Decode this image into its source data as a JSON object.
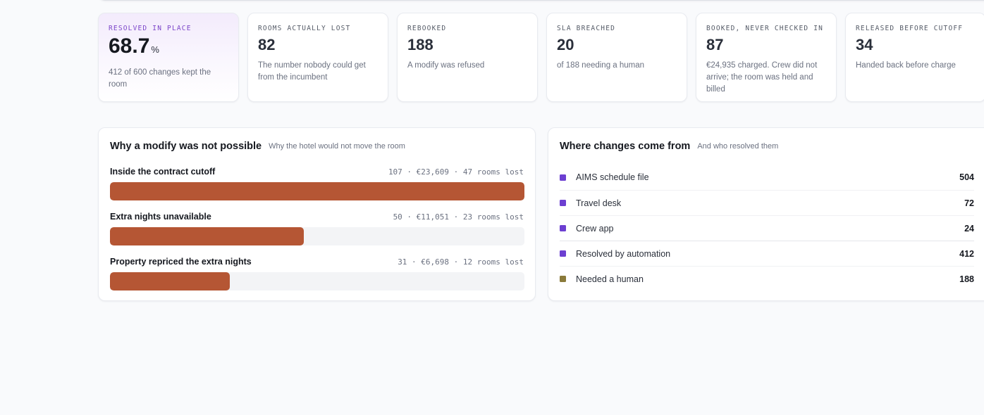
{
  "kpis": [
    {
      "label": "RESOLVED IN PLACE",
      "value": "68.7",
      "unit": "%",
      "desc": "412 of 600 changes kept the room"
    },
    {
      "label": "ROOMS ACTUALLY LOST",
      "value": "82",
      "unit": "",
      "desc": "The number nobody could get from the incumbent"
    },
    {
      "label": "REBOOKED",
      "value": "188",
      "unit": "",
      "desc": "A modify was refused"
    },
    {
      "label": "SLA BREACHED",
      "value": "20",
      "unit": "",
      "desc": "of 188 needing a human"
    },
    {
      "label": "BOOKED, NEVER CHECKED IN",
      "value": "87",
      "unit": "",
      "desc": "€24,935 charged. Crew did not arrive; the room was held and billed"
    },
    {
      "label": "RELEASED BEFORE CUTOFF",
      "value": "34",
      "unit": "",
      "desc": "Handed back before charge"
    }
  ],
  "reasons": {
    "title": "Why a modify was not possible",
    "subtitle": "Why the hotel would not move the room",
    "bar_color": "#b55634",
    "items": [
      {
        "label": "Inside the contract cutoff",
        "stats": "107 · €23,609 · 47 rooms lost",
        "count": 107
      },
      {
        "label": "Extra nights unavailable",
        "stats": "50 · €11,051 · 23 rooms lost",
        "count": 50
      },
      {
        "label": "Property repriced the extra nights",
        "stats": "31 · €6,698 · 12 rooms lost",
        "count": 31
      }
    ]
  },
  "sources": {
    "title": "Where changes come from",
    "subtitle": "And who resolved them",
    "items": [
      {
        "label": "AIMS schedule file",
        "value": "504",
        "color": "#6c3fd1"
      },
      {
        "label": "Travel desk",
        "value": "72",
        "color": "#6c3fd1"
      },
      {
        "label": "Crew app",
        "value": "24",
        "color": "#6c3fd1"
      },
      {
        "label": "Resolved by automation",
        "value": "412",
        "color": "#6c3fd1"
      },
      {
        "label": "Needed a human",
        "value": "188",
        "color": "#8a7a3a"
      }
    ]
  }
}
